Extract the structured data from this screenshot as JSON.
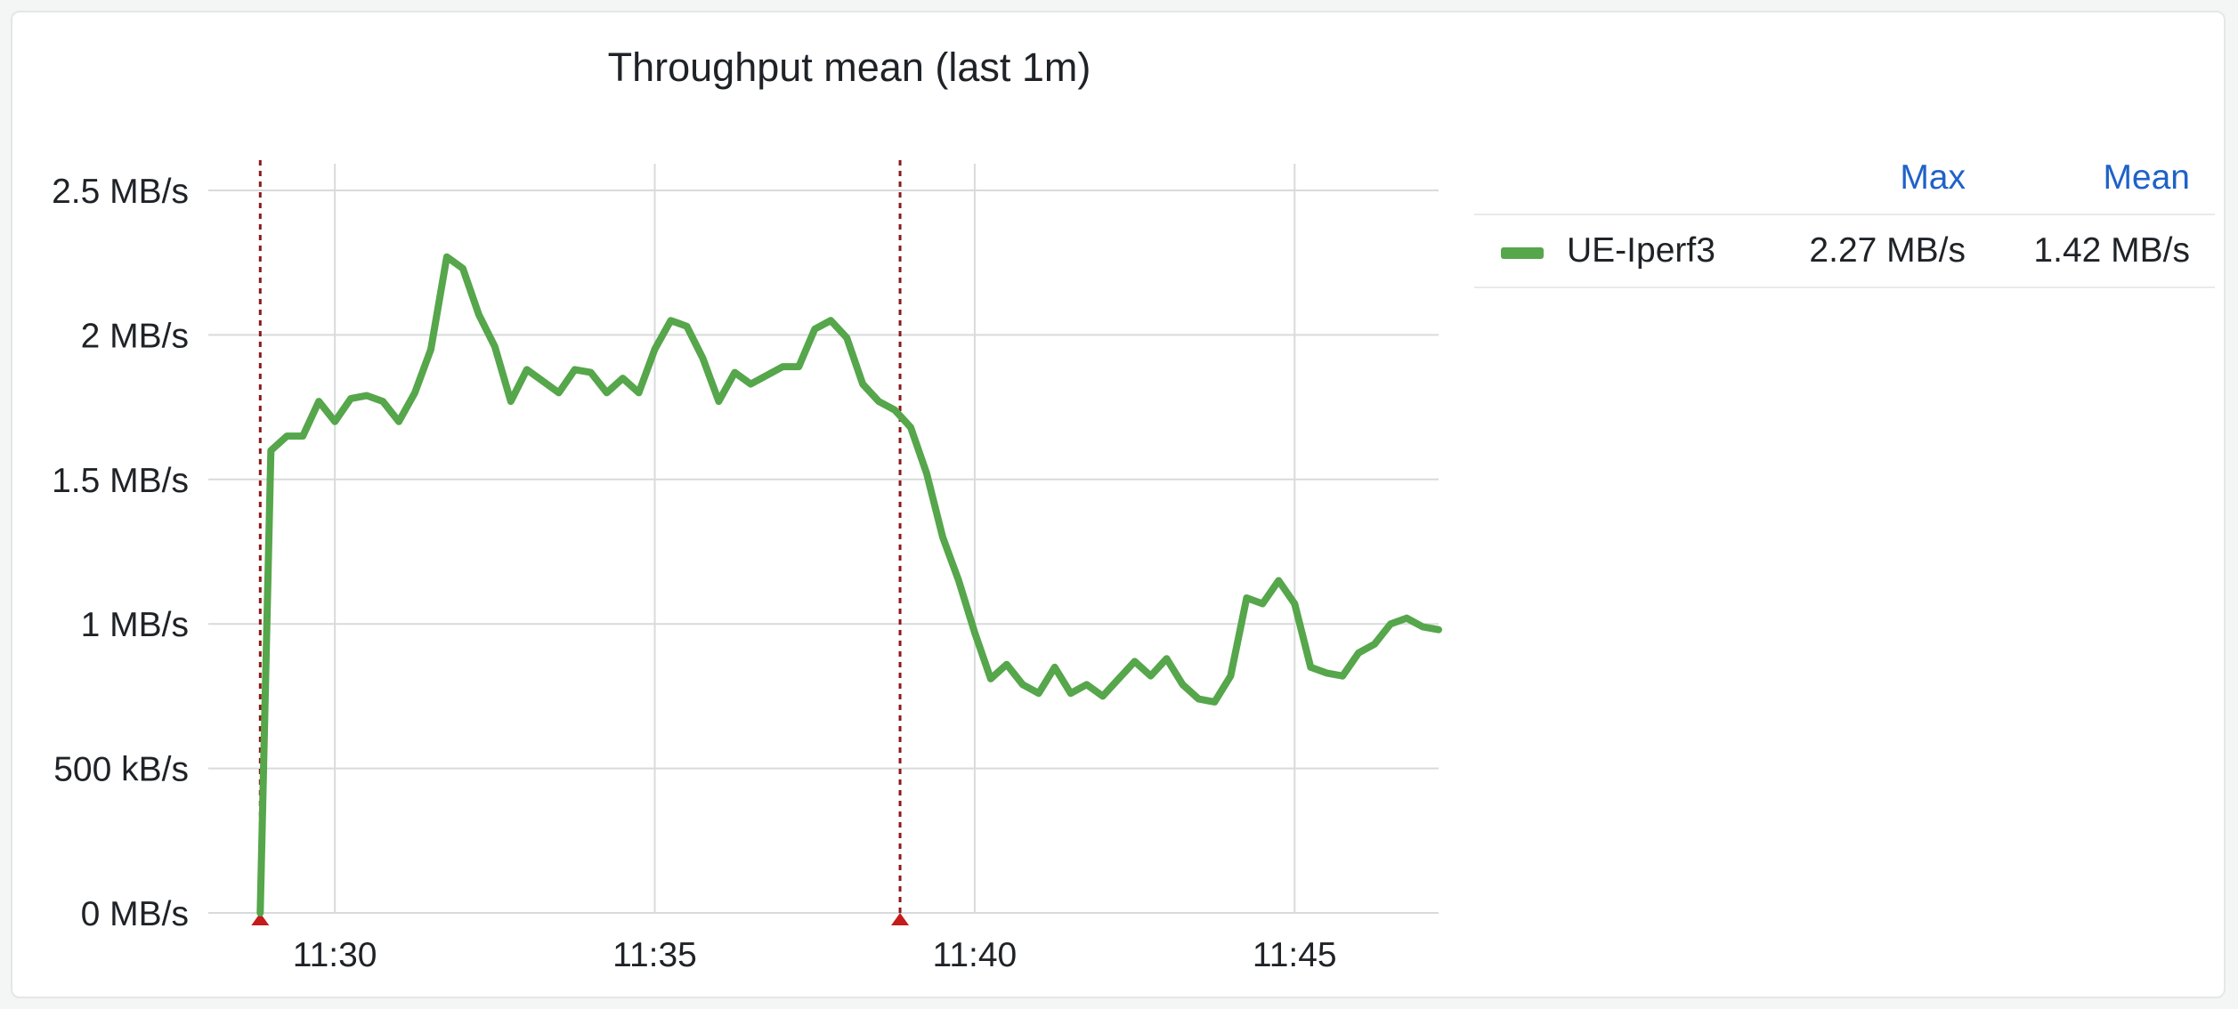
{
  "chart_data": {
    "type": "line",
    "title": "Throughput mean (last 1m)",
    "xlabel": "",
    "ylabel": "",
    "x_ticks": [
      "11:30",
      "11:35",
      "11:40",
      "11:45"
    ],
    "y_ticks": [
      "0 MB/s",
      "500 kB/s",
      "1 MB/s",
      "1.5 MB/s",
      "2 MB/s",
      "2.5 MB/s"
    ],
    "ylim": [
      0,
      2.6
    ],
    "xlim": [
      "11:28:03",
      "11:47:15"
    ],
    "grid": true,
    "y_unit": "MB/s",
    "annotations": [
      {
        "time": "11:28:50",
        "style": "dashed vertical marker"
      },
      {
        "time": "11:38:50",
        "style": "dashed vertical marker"
      }
    ],
    "series": [
      {
        "name": "UE-Iperf3",
        "color": "#56a64b",
        "x": [
          "11:28:50",
          "11:29:00",
          "11:29:15",
          "11:29:30",
          "11:29:45",
          "11:30:00",
          "11:30:15",
          "11:30:30",
          "11:30:45",
          "11:31:00",
          "11:31:15",
          "11:31:30",
          "11:31:45",
          "11:32:00",
          "11:32:15",
          "11:32:30",
          "11:32:45",
          "11:33:00",
          "11:33:15",
          "11:33:30",
          "11:33:45",
          "11:34:00",
          "11:34:15",
          "11:34:30",
          "11:34:45",
          "11:35:00",
          "11:35:15",
          "11:35:30",
          "11:35:45",
          "11:36:00",
          "11:36:15",
          "11:36:30",
          "11:36:45",
          "11:37:00",
          "11:37:15",
          "11:37:30",
          "11:37:45",
          "11:38:00",
          "11:38:15",
          "11:38:30",
          "11:38:45",
          "11:39:00",
          "11:39:15",
          "11:39:30",
          "11:39:45",
          "11:40:00",
          "11:40:15",
          "11:40:30",
          "11:40:45",
          "11:41:00",
          "11:41:15",
          "11:41:30",
          "11:41:45",
          "11:42:00",
          "11:42:15",
          "11:42:30",
          "11:42:45",
          "11:43:00",
          "11:43:15",
          "11:43:30",
          "11:43:45",
          "11:44:00",
          "11:44:15",
          "11:44:30",
          "11:44:45",
          "11:45:00",
          "11:45:15",
          "11:45:30",
          "11:45:45",
          "11:46:00",
          "11:46:15",
          "11:46:30",
          "11:46:45",
          "11:47:00",
          "11:47:15"
        ],
        "values": [
          0.0,
          1.6,
          1.65,
          1.65,
          1.77,
          1.7,
          1.78,
          1.79,
          1.77,
          1.7,
          1.8,
          1.95,
          2.27,
          2.23,
          2.07,
          1.96,
          1.77,
          1.88,
          1.84,
          1.8,
          1.88,
          1.87,
          1.8,
          1.85,
          1.8,
          1.95,
          2.05,
          2.03,
          1.92,
          1.77,
          1.87,
          1.83,
          1.86,
          1.89,
          1.89,
          2.02,
          2.05,
          1.99,
          1.83,
          1.77,
          1.74,
          1.68,
          1.52,
          1.3,
          1.15,
          0.97,
          0.81,
          0.86,
          0.79,
          0.76,
          0.85,
          0.76,
          0.79,
          0.75,
          0.81,
          0.87,
          0.82,
          0.88,
          0.79,
          0.74,
          0.73,
          0.82,
          1.09,
          1.07,
          1.15,
          1.07,
          0.85,
          0.83,
          0.82,
          0.9,
          0.93,
          1.0,
          1.02,
          0.99,
          0.98
        ]
      }
    ]
  },
  "legend": {
    "header_max": "Max",
    "header_mean": "Mean",
    "series_name": "UE-Iperf3",
    "max_value": "2.27 MB/s",
    "mean_value": "1.42 MB/s"
  }
}
